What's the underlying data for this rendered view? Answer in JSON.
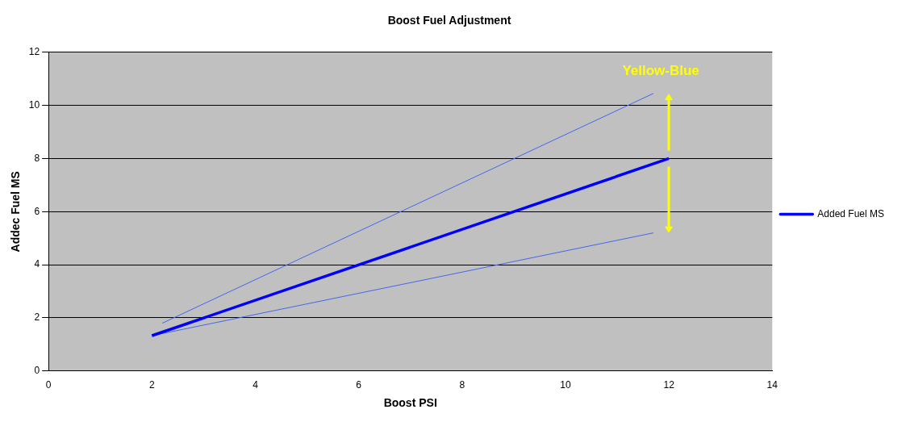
{
  "chart_data": {
    "type": "line",
    "title": "Boost Fuel Adjustment",
    "xlabel": "Boost PSI",
    "ylabel": "Addec Fuel MS",
    "xlim": [
      0,
      14
    ],
    "xticks": [
      0,
      2,
      4,
      6,
      8,
      10,
      12,
      14
    ],
    "ylim": [
      0,
      12
    ],
    "yticks": [
      0,
      2,
      4,
      6,
      8,
      10,
      12
    ],
    "grid": "y",
    "legend": "right",
    "marker": "none",
    "line_style": "solid",
    "annotations": [
      "Yellow-Blue"
    ],
    "series": [
      {
        "name": "Added Fuel MS",
        "color": "#0000ff",
        "x": [
          2,
          12
        ],
        "values": [
          1.33,
          8
        ]
      },
      {
        "color": "#4466ee",
        "x": [
          2.2,
          11.7
        ],
        "values": [
          1.8,
          10.45
        ]
      },
      {
        "color": "#4466ee",
        "x": [
          2,
          11.7
        ],
        "values": [
          1.33,
          5.2
        ]
      }
    ]
  }
}
